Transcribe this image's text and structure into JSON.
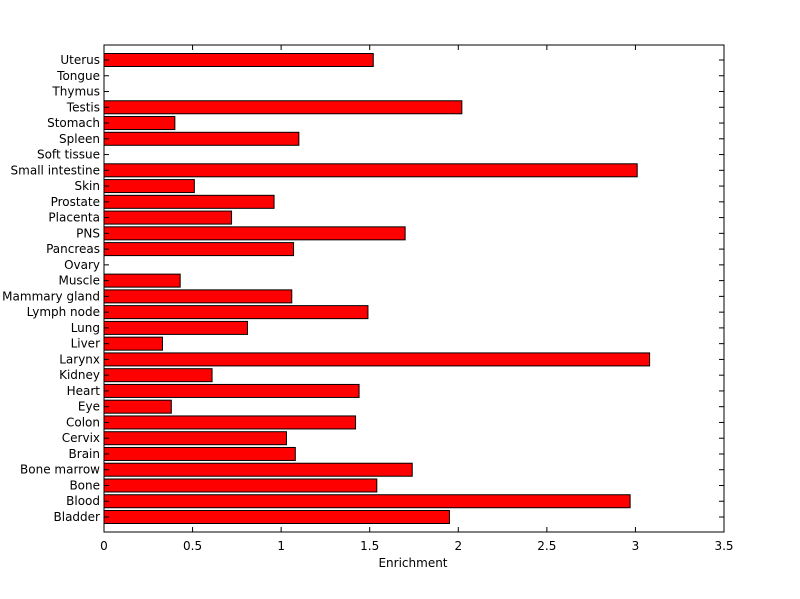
{
  "chart_data": {
    "type": "bar",
    "orientation": "horizontal",
    "title": "",
    "xlabel": "Enrichment",
    "ylabel": "",
    "xlim": [
      0,
      3.5
    ],
    "xticks": [
      0,
      0.5,
      1,
      1.5,
      2,
      2.5,
      3,
      3.5
    ],
    "grid": false,
    "legend": null,
    "bar_color": "#ff0000",
    "bar_edge_color": "#000000",
    "categories": [
      "Bladder",
      "Blood",
      "Bone",
      "Bone marrow",
      "Brain",
      "Cervix",
      "Colon",
      "Eye",
      "Heart",
      "Kidney",
      "Larynx",
      "Liver",
      "Lung",
      "Lymph node",
      "Mammary gland",
      "Muscle",
      "Ovary",
      "Pancreas",
      "PNS",
      "Placenta",
      "Prostate",
      "Skin",
      "Small intestine",
      "Soft tissue",
      "Spleen",
      "Stomach",
      "Testis",
      "Thymus",
      "Tongue",
      "Uterus"
    ],
    "values": [
      1.95,
      2.97,
      1.54,
      1.74,
      1.08,
      1.03,
      1.42,
      0.38,
      1.44,
      0.61,
      3.08,
      0.33,
      0.81,
      1.49,
      1.06,
      0.43,
      0,
      1.07,
      1.7,
      0.72,
      0.96,
      0.51,
      3.01,
      0,
      1.1,
      0.4,
      2.02,
      0,
      0,
      1.52
    ]
  }
}
